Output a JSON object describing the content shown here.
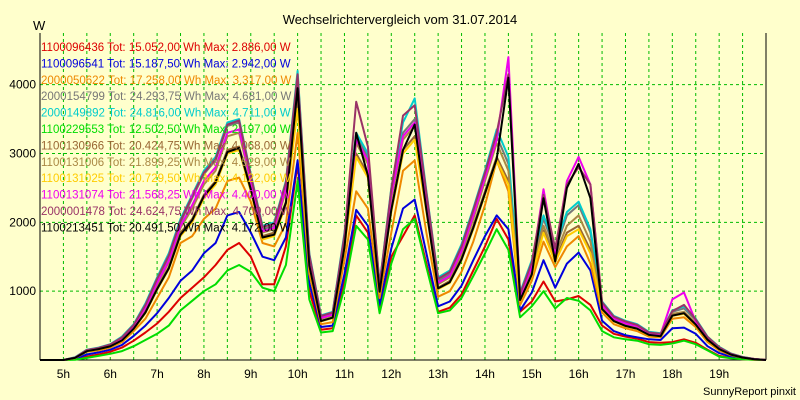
{
  "chart_data": {
    "type": "line",
    "title": "Wechselrichtervergleich vom 31.07.2014",
    "ylabel": "W",
    "xlabel": "",
    "footer": "SunnyReport pinxit",
    "ylim": [
      0,
      4750
    ],
    "xlim": [
      4.5,
      20.0
    ],
    "yticks": [
      1000,
      2000,
      3000,
      4000
    ],
    "xticks": [
      {
        "value": 5,
        "label": "5h"
      },
      {
        "value": 6,
        "label": "6h"
      },
      {
        "value": 7,
        "label": "7h"
      },
      {
        "value": 8,
        "label": "8h"
      },
      {
        "value": 9,
        "label": "9h"
      },
      {
        "value": 10,
        "label": "10h"
      },
      {
        "value": 11,
        "label": "11h"
      },
      {
        "value": 12,
        "label": "12h"
      },
      {
        "value": 13,
        "label": "13h"
      },
      {
        "value": 14,
        "label": "14h"
      },
      {
        "value": 15,
        "label": "15h"
      },
      {
        "value": 16,
        "label": "16h"
      },
      {
        "value": 17,
        "label": "17h"
      },
      {
        "value": 18,
        "label": "18h"
      },
      {
        "value": 19,
        "label": "19h"
      }
    ],
    "grid": true,
    "legend_position": "top-left",
    "x": [
      4.5,
      4.75,
      5.0,
      5.25,
      5.5,
      5.75,
      6.0,
      6.25,
      6.5,
      6.75,
      7.0,
      7.25,
      7.5,
      7.75,
      8.0,
      8.25,
      8.5,
      8.75,
      9.0,
      9.25,
      9.5,
      9.75,
      10.0,
      10.25,
      10.5,
      10.75,
      11.0,
      11.25,
      11.5,
      11.75,
      12.0,
      12.25,
      12.5,
      12.75,
      13.0,
      13.25,
      13.5,
      13.75,
      14.0,
      14.25,
      14.5,
      14.75,
      15.0,
      15.25,
      15.5,
      15.75,
      16.0,
      16.25,
      16.5,
      16.75,
      17.0,
      17.25,
      17.5,
      17.75,
      18.0,
      18.25,
      18.5,
      18.75,
      19.0,
      19.25,
      19.5,
      19.75,
      20.0
    ],
    "series": [
      {
        "name": "1100096436 Tot: 15.052,00 Wh Max: 2.886,00 W",
        "color": "#dd0000",
        "values": [
          0,
          0,
          0,
          10,
          50,
          80,
          120,
          180,
          280,
          400,
          530,
          700,
          900,
          1050,
          1200,
          1380,
          1600,
          1700,
          1500,
          1100,
          1100,
          1650,
          2850,
          1000,
          440,
          460,
          1150,
          2100,
          1850,
          740,
          1500,
          1800,
          2100,
          1400,
          700,
          760,
          950,
          1300,
          1650,
          2050,
          1750,
          700,
          850,
          1140,
          850,
          880,
          930,
          800,
          500,
          380,
          340,
          310,
          260,
          250,
          260,
          300,
          250,
          150,
          60,
          30,
          10,
          5,
          0
        ]
      },
      {
        "name": "1100096541 Tot: 15.187,50 Wh Max: 2.942,00 W",
        "color": "#0000dd",
        "values": [
          0,
          0,
          0,
          20,
          80,
          110,
          150,
          220,
          350,
          500,
          680,
          900,
          1150,
          1300,
          1550,
          1700,
          2100,
          2150,
          1850,
          1500,
          1450,
          1780,
          2900,
          1120,
          480,
          500,
          1250,
          2180,
          1950,
          800,
          1620,
          2200,
          2330,
          1550,
          780,
          850,
          1080,
          1450,
          1800,
          2100,
          1900,
          720,
          980,
          1450,
          1050,
          1400,
          1560,
          1300,
          570,
          420,
          360,
          330,
          300,
          290,
          460,
          470,
          380,
          200,
          100,
          50,
          20,
          10,
          0
        ]
      },
      {
        "name": "2000050622 Tot: 17.258,00 Wh Max: 3.317,00 W",
        "color": "#ee8800",
        "values": [
          0,
          0,
          0,
          30,
          120,
          140,
          180,
          260,
          420,
          600,
          900,
          1200,
          1700,
          1800,
          2050,
          2200,
          2600,
          2650,
          2300,
          1700,
          1650,
          1980,
          3300,
          1250,
          520,
          550,
          1450,
          2450,
          2200,
          900,
          1850,
          2750,
          2900,
          1850,
          920,
          1000,
          1280,
          1720,
          2250,
          2900,
          2450,
          800,
          1150,
          1720,
          1350,
          1650,
          1800,
          1400,
          690,
          520,
          460,
          420,
          340,
          330,
          600,
          620,
          480,
          260,
          140,
          70,
          30,
          10,
          0
        ]
      },
      {
        "name": "2000154799 Tot: 24.293,75 Wh Max: 4.681,00 W",
        "color": "#777777",
        "values": [
          0,
          0,
          0,
          35,
          140,
          170,
          220,
          320,
          500,
          780,
          1150,
          1500,
          2000,
          2350,
          2700,
          2900,
          3400,
          3450,
          2650,
          1900,
          1950,
          2550,
          4100,
          1500,
          620,
          680,
          1800,
          3250,
          2950,
          1080,
          2450,
          3300,
          3500,
          2400,
          1150,
          1250,
          1620,
          2150,
          2700,
          3250,
          2850,
          950,
          1400,
          2050,
          1600,
          2100,
          2250,
          1850,
          820,
          620,
          550,
          500,
          400,
          380,
          700,
          750,
          580,
          330,
          180,
          90,
          40,
          15,
          0
        ]
      },
      {
        "name": "2000149892 Tot: 24.816,00 Wh Max: 4.711,00 W",
        "color": "#00cccc",
        "values": [
          0,
          0,
          0,
          40,
          150,
          180,
          230,
          340,
          520,
          820,
          1200,
          1550,
          2050,
          2400,
          2750,
          2950,
          3450,
          3500,
          2700,
          1950,
          2000,
          2600,
          4200,
          1550,
          650,
          700,
          1850,
          3300,
          3000,
          1100,
          2500,
          3450,
          3800,
          2450,
          1200,
          1300,
          1680,
          2200,
          2750,
          3350,
          2950,
          980,
          1450,
          2100,
          1650,
          2150,
          2300,
          1900,
          850,
          640,
          570,
          520,
          410,
          390,
          720,
          780,
          600,
          340,
          190,
          95,
          45,
          15,
          0
        ]
      },
      {
        "name": "1100229553 Tot: 12.502,50 Wh Max: 2.197,00 W",
        "color": "#00dd00",
        "values": [
          0,
          0,
          0,
          5,
          30,
          60,
          90,
          130,
          200,
          290,
          380,
          500,
          720,
          860,
          1000,
          1100,
          1300,
          1380,
          1280,
          1050,
          1000,
          1380,
          2600,
          880,
          400,
          420,
          1050,
          1950,
          1750,
          680,
          1400,
          1900,
          2050,
          1350,
          680,
          720,
          900,
          1220,
          1550,
          1900,
          1600,
          620,
          780,
          1000,
          750,
          900,
          860,
          720,
          420,
          330,
          300,
          280,
          230,
          220,
          240,
          280,
          230,
          140,
          50,
          25,
          10,
          5,
          0
        ]
      },
      {
        "name": "1100130966 Tot: 20.424,75 Wh Max: 4.068,00 W",
        "color": "#996633",
        "values": [
          0,
          0,
          0,
          30,
          130,
          160,
          200,
          290,
          460,
          700,
          1050,
          1350,
          1850,
          2050,
          2400,
          2600,
          3050,
          3100,
          2500,
          1800,
          1850,
          2300,
          3750,
          1380,
          570,
          620,
          1650,
          3000,
          2700,
          1000,
          2200,
          3050,
          3250,
          2200,
          1050,
          1150,
          1480,
          1950,
          2450,
          2950,
          2600,
          880,
          1250,
          1880,
          1450,
          1850,
          1950,
          1600,
          750,
          570,
          500,
          460,
          370,
          350,
          650,
          680,
          520,
          300,
          160,
          80,
          35,
          12,
          0
        ]
      },
      {
        "name": "1100131006 Tot: 21.899,25 Wh Max: 4.529,00 W",
        "color": "#aa8844",
        "values": [
          0,
          0,
          0,
          32,
          135,
          165,
          210,
          300,
          480,
          740,
          1100,
          1420,
          1920,
          2200,
          2550,
          2750,
          3250,
          3300,
          2580,
          1850,
          1900,
          2450,
          3950,
          1450,
          600,
          650,
          1720,
          3150,
          2850,
          1040,
          2350,
          3200,
          3400,
          2300,
          1100,
          1200,
          1550,
          2050,
          2600,
          3150,
          2750,
          920,
          1320,
          1950,
          1520,
          1950,
          2100,
          1720,
          780,
          590,
          520,
          480,
          380,
          360,
          670,
          700,
          540,
          310,
          170,
          85,
          38,
          13,
          0
        ]
      },
      {
        "name": "1100131025 Tot: 20.729,50 Wh Max: 4.122,00 W",
        "color": "#ffcc00",
        "values": [
          0,
          0,
          0,
          28,
          125,
          155,
          195,
          280,
          450,
          680,
          1020,
          1320,
          1800,
          2000,
          2350,
          2550,
          3000,
          3050,
          2450,
          1750,
          1800,
          2250,
          3650,
          1350,
          560,
          610,
          1620,
          2950,
          2650,
          980,
          2150,
          3000,
          3200,
          2150,
          1030,
          1120,
          1450,
          1900,
          2400,
          2900,
          2550,
          860,
          1220,
          1850,
          1420,
          1800,
          1900,
          1550,
          730,
          560,
          490,
          450,
          360,
          340,
          640,
          670,
          510,
          290,
          155,
          78,
          34,
          12,
          0
        ]
      },
      {
        "name": "1100131074 Tot: 21.568,25 Wh Max: 4.400,00 W",
        "color": "#ee00ee",
        "values": [
          0,
          0,
          0,
          34,
          140,
          170,
          215,
          310,
          490,
          760,
          1120,
          1440,
          1950,
          2250,
          2600,
          2800,
          3300,
          3350,
          2600,
          1870,
          1920,
          2500,
          4050,
          1480,
          610,
          660,
          1750,
          3200,
          2900,
          1060,
          2400,
          3250,
          3450,
          2350,
          1120,
          1220,
          1580,
          2100,
          2650,
          3200,
          4400,
          930,
          1350,
          2480,
          1550,
          2600,
          2950,
          2550,
          800,
          600,
          530,
          490,
          390,
          370,
          880,
          980,
          560,
          320,
          175,
          88,
          39,
          14,
          0
        ]
      },
      {
        "name": "2000001478 Tot: 24.624,75 Wh Max: 4.700,00 W",
        "color": "#993366",
        "values": [
          0,
          0,
          0,
          36,
          145,
          175,
          225,
          330,
          510,
          800,
          1180,
          1520,
          2020,
          2380,
          2720,
          2920,
          3420,
          3480,
          2680,
          1930,
          1980,
          2580,
          4150,
          1530,
          640,
          690,
          1820,
          3750,
          3100,
          1090,
          2480,
          3550,
          3700,
          2430,
          1180,
          1280,
          1650,
          2180,
          2720,
          3300,
          4150,
          960,
          1420,
          2400,
          1620,
          2550,
          2800,
          2550,
          840,
          630,
          560,
          510,
          400,
          380,
          710,
          800,
          590,
          335,
          185,
          92,
          42,
          15,
          0
        ]
      },
      {
        "name": "1100213451 Tot: 20.491,50 Wh Max: 4.172,00 W",
        "color": "#000000",
        "values": [
          0,
          0,
          0,
          30,
          128,
          158,
          198,
          285,
          455,
          690,
          1030,
          1330,
          1820,
          2030,
          2380,
          2580,
          3020,
          3080,
          2480,
          1780,
          1820,
          2280,
          3950,
          1370,
          565,
          615,
          1640,
          3300,
          2680,
          990,
          2180,
          3050,
          3420,
          2180,
          1040,
          1130,
          1460,
          1920,
          2420,
          2920,
          4100,
          870,
          1240,
          2350,
          1430,
          2500,
          2850,
          2350,
          740,
          565,
          495,
          455,
          365,
          345,
          645,
          680,
          515,
          295,
          158,
          79,
          35,
          12,
          0
        ]
      }
    ]
  }
}
